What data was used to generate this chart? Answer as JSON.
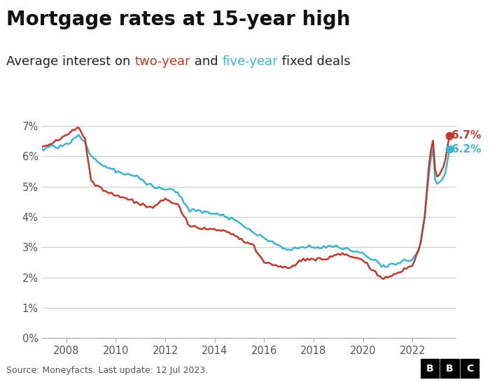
{
  "title": "Mortgage rates at 15-year high",
  "subtitle_parts": [
    {
      "text": "Average interest on ",
      "color": "#222222"
    },
    {
      "text": "two-year",
      "color": "#c0392b"
    },
    {
      "text": " and ",
      "color": "#222222"
    },
    {
      "text": "five-year",
      "color": "#3ab4d0"
    },
    {
      "text": " fixed deals",
      "color": "#222222"
    }
  ],
  "source": "Source: Moneyfacts. Last update: 12 Jul 2023.",
  "two_year_color": "#c0392b",
  "five_year_color": "#3ab4d0",
  "end_label_two": "6.7%",
  "end_label_five": "6.2%",
  "ylim": [
    0.0,
    0.075
  ],
  "yticks": [
    0.0,
    0.01,
    0.02,
    0.03,
    0.04,
    0.05,
    0.06,
    0.07
  ],
  "ytick_labels": [
    "0%",
    "1%",
    "2%",
    "3%",
    "4%",
    "5%",
    "6%",
    "7%"
  ],
  "xlim_start": 2007.0,
  "xlim_end": 2023.75,
  "xticks": [
    2008,
    2010,
    2012,
    2014,
    2016,
    2018,
    2020,
    2022
  ],
  "background_color": "#ffffff",
  "title_fontsize": 20,
  "subtitle_fontsize": 13,
  "line_width": 1.8,
  "two_year_keypoints": [
    [
      2007.0,
      0.063
    ],
    [
      2007.3,
      0.064
    ],
    [
      2007.6,
      0.065
    ],
    [
      2008.0,
      0.067
    ],
    [
      2008.5,
      0.07
    ],
    [
      2008.75,
      0.066
    ],
    [
      2009.0,
      0.052
    ],
    [
      2009.5,
      0.049
    ],
    [
      2010.0,
      0.047
    ],
    [
      2010.5,
      0.046
    ],
    [
      2011.0,
      0.044
    ],
    [
      2011.5,
      0.043
    ],
    [
      2012.0,
      0.046
    ],
    [
      2012.5,
      0.044
    ],
    [
      2013.0,
      0.037
    ],
    [
      2013.5,
      0.036
    ],
    [
      2014.0,
      0.036
    ],
    [
      2014.5,
      0.035
    ],
    [
      2015.0,
      0.033
    ],
    [
      2015.5,
      0.031
    ],
    [
      2016.0,
      0.025
    ],
    [
      2016.5,
      0.024
    ],
    [
      2017.0,
      0.023
    ],
    [
      2017.5,
      0.026
    ],
    [
      2018.0,
      0.026
    ],
    [
      2018.5,
      0.026
    ],
    [
      2019.0,
      0.028
    ],
    [
      2019.5,
      0.027
    ],
    [
      2020.0,
      0.026
    ],
    [
      2020.3,
      0.023
    ],
    [
      2020.6,
      0.021
    ],
    [
      2020.75,
      0.02
    ],
    [
      2021.0,
      0.02
    ],
    [
      2021.5,
      0.022
    ],
    [
      2022.0,
      0.024
    ],
    [
      2022.3,
      0.03
    ],
    [
      2022.5,
      0.04
    ],
    [
      2022.7,
      0.06
    ],
    [
      2022.83,
      0.066
    ],
    [
      2022.92,
      0.055
    ],
    [
      2023.0,
      0.053
    ],
    [
      2023.1,
      0.054
    ],
    [
      2023.3,
      0.057
    ],
    [
      2023.5,
      0.067
    ]
  ],
  "five_year_keypoints": [
    [
      2007.0,
      0.062
    ],
    [
      2007.3,
      0.063
    ],
    [
      2007.6,
      0.063
    ],
    [
      2008.0,
      0.064
    ],
    [
      2008.5,
      0.067
    ],
    [
      2008.75,
      0.065
    ],
    [
      2009.0,
      0.06
    ],
    [
      2009.5,
      0.057
    ],
    [
      2010.0,
      0.055
    ],
    [
      2010.5,
      0.054
    ],
    [
      2011.0,
      0.053
    ],
    [
      2011.5,
      0.05
    ],
    [
      2012.0,
      0.049
    ],
    [
      2012.3,
      0.049
    ],
    [
      2012.5,
      0.048
    ],
    [
      2013.0,
      0.042
    ],
    [
      2013.5,
      0.042
    ],
    [
      2014.0,
      0.041
    ],
    [
      2014.5,
      0.04
    ],
    [
      2015.0,
      0.038
    ],
    [
      2015.5,
      0.035
    ],
    [
      2016.0,
      0.033
    ],
    [
      2016.5,
      0.031
    ],
    [
      2017.0,
      0.029
    ],
    [
      2017.5,
      0.03
    ],
    [
      2018.0,
      0.03
    ],
    [
      2018.5,
      0.03
    ],
    [
      2019.0,
      0.03
    ],
    [
      2019.5,
      0.029
    ],
    [
      2020.0,
      0.028
    ],
    [
      2020.3,
      0.026
    ],
    [
      2020.6,
      0.025
    ],
    [
      2020.75,
      0.024
    ],
    [
      2021.0,
      0.024
    ],
    [
      2021.5,
      0.025
    ],
    [
      2022.0,
      0.026
    ],
    [
      2022.3,
      0.03
    ],
    [
      2022.5,
      0.04
    ],
    [
      2022.7,
      0.057
    ],
    [
      2022.83,
      0.063
    ],
    [
      2022.92,
      0.052
    ],
    [
      2023.0,
      0.051
    ],
    [
      2023.1,
      0.052
    ],
    [
      2023.3,
      0.053
    ],
    [
      2023.5,
      0.062
    ]
  ]
}
